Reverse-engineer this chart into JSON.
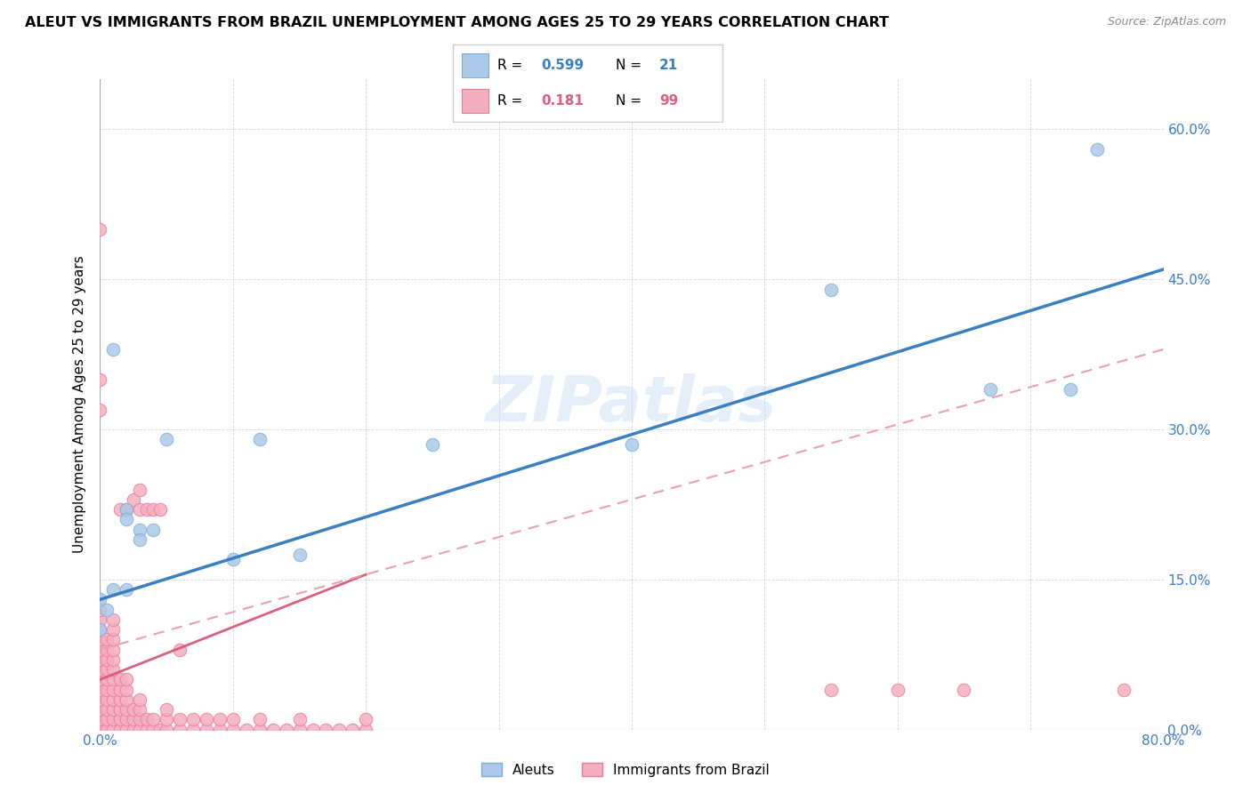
{
  "title": "ALEUT VS IMMIGRANTS FROM BRAZIL UNEMPLOYMENT AMONG AGES 25 TO 29 YEARS CORRELATION CHART",
  "source": "Source: ZipAtlas.com",
  "ylabel": "Unemployment Among Ages 25 to 29 years",
  "xmin": 0.0,
  "xmax": 0.8,
  "ymin": 0.0,
  "ymax": 0.65,
  "yticks": [
    0.0,
    0.15,
    0.3,
    0.45,
    0.6
  ],
  "legend_R_aleut": "0.599",
  "legend_N_aleut": "21",
  "legend_R_brazil": "0.181",
  "legend_N_brazil": "99",
  "aleut_color": "#adc8e8",
  "brazil_color": "#f5afc0",
  "aleut_edge": "#7aafd4",
  "brazil_edge": "#e8799a",
  "trend_aleut_color": "#3a7fc1",
  "trend_brazil_color": "#d9607a",
  "trend_brazil_dash_color": "#e8a0b0",
  "watermark": "ZIPatlas",
  "aleut_scatter": [
    [
      0.0,
      0.13
    ],
    [
      0.0,
      0.1
    ],
    [
      0.01,
      0.14
    ],
    [
      0.01,
      0.38
    ],
    [
      0.02,
      0.22
    ],
    [
      0.02,
      0.21
    ],
    [
      0.02,
      0.14
    ],
    [
      0.03,
      0.2
    ],
    [
      0.03,
      0.19
    ],
    [
      0.04,
      0.2
    ],
    [
      0.05,
      0.29
    ],
    [
      0.1,
      0.17
    ],
    [
      0.12,
      0.29
    ],
    [
      0.15,
      0.175
    ],
    [
      0.25,
      0.285
    ],
    [
      0.55,
      0.44
    ],
    [
      0.67,
      0.34
    ],
    [
      0.73,
      0.34
    ],
    [
      0.75,
      0.58
    ],
    [
      0.4,
      0.285
    ],
    [
      0.005,
      0.12
    ]
  ],
  "brazil_scatter": [
    [
      0.0,
      0.0
    ],
    [
      0.0,
      0.01
    ],
    [
      0.0,
      0.02
    ],
    [
      0.0,
      0.03
    ],
    [
      0.0,
      0.04
    ],
    [
      0.0,
      0.05
    ],
    [
      0.0,
      0.06
    ],
    [
      0.0,
      0.07
    ],
    [
      0.0,
      0.08
    ],
    [
      0.0,
      0.09
    ],
    [
      0.0,
      0.1
    ],
    [
      0.0,
      0.11
    ],
    [
      0.0,
      0.12
    ],
    [
      0.005,
      0.0
    ],
    [
      0.005,
      0.01
    ],
    [
      0.005,
      0.02
    ],
    [
      0.005,
      0.03
    ],
    [
      0.005,
      0.04
    ],
    [
      0.005,
      0.05
    ],
    [
      0.005,
      0.06
    ],
    [
      0.005,
      0.07
    ],
    [
      0.005,
      0.08
    ],
    [
      0.005,
      0.09
    ],
    [
      0.01,
      0.0
    ],
    [
      0.01,
      0.01
    ],
    [
      0.01,
      0.02
    ],
    [
      0.01,
      0.03
    ],
    [
      0.01,
      0.04
    ],
    [
      0.01,
      0.05
    ],
    [
      0.01,
      0.06
    ],
    [
      0.01,
      0.07
    ],
    [
      0.01,
      0.08
    ],
    [
      0.01,
      0.09
    ],
    [
      0.01,
      0.1
    ],
    [
      0.01,
      0.11
    ],
    [
      0.015,
      0.0
    ],
    [
      0.015,
      0.01
    ],
    [
      0.015,
      0.02
    ],
    [
      0.015,
      0.03
    ],
    [
      0.015,
      0.04
    ],
    [
      0.015,
      0.05
    ],
    [
      0.015,
      0.22
    ],
    [
      0.02,
      0.0
    ],
    [
      0.02,
      0.01
    ],
    [
      0.02,
      0.02
    ],
    [
      0.02,
      0.03
    ],
    [
      0.02,
      0.04
    ],
    [
      0.02,
      0.05
    ],
    [
      0.02,
      0.22
    ],
    [
      0.025,
      0.0
    ],
    [
      0.025,
      0.01
    ],
    [
      0.025,
      0.02
    ],
    [
      0.025,
      0.23
    ],
    [
      0.03,
      0.0
    ],
    [
      0.03,
      0.01
    ],
    [
      0.03,
      0.02
    ],
    [
      0.03,
      0.03
    ],
    [
      0.03,
      0.22
    ],
    [
      0.03,
      0.24
    ],
    [
      0.035,
      0.0
    ],
    [
      0.035,
      0.01
    ],
    [
      0.035,
      0.22
    ],
    [
      0.04,
      0.0
    ],
    [
      0.04,
      0.01
    ],
    [
      0.04,
      0.22
    ],
    [
      0.045,
      0.0
    ],
    [
      0.045,
      0.22
    ],
    [
      0.05,
      0.0
    ],
    [
      0.05,
      0.01
    ],
    [
      0.05,
      0.02
    ],
    [
      0.06,
      0.0
    ],
    [
      0.06,
      0.01
    ],
    [
      0.06,
      0.08
    ],
    [
      0.07,
      0.0
    ],
    [
      0.07,
      0.01
    ],
    [
      0.08,
      0.0
    ],
    [
      0.08,
      0.01
    ],
    [
      0.09,
      0.0
    ],
    [
      0.09,
      0.01
    ],
    [
      0.1,
      0.0
    ],
    [
      0.1,
      0.01
    ],
    [
      0.11,
      0.0
    ],
    [
      0.12,
      0.0
    ],
    [
      0.12,
      0.01
    ],
    [
      0.13,
      0.0
    ],
    [
      0.14,
      0.0
    ],
    [
      0.15,
      0.0
    ],
    [
      0.15,
      0.01
    ],
    [
      0.16,
      0.0
    ],
    [
      0.17,
      0.0
    ],
    [
      0.18,
      0.0
    ],
    [
      0.19,
      0.0
    ],
    [
      0.2,
      0.0
    ],
    [
      0.2,
      0.01
    ],
    [
      0.0,
      0.5
    ],
    [
      0.0,
      0.35
    ],
    [
      0.0,
      0.32
    ],
    [
      0.55,
      0.04
    ],
    [
      0.6,
      0.04
    ],
    [
      0.65,
      0.04
    ],
    [
      0.77,
      0.04
    ]
  ],
  "aleut_trend_x": [
    0.0,
    0.8
  ],
  "aleut_trend_y": [
    0.13,
    0.46
  ],
  "brazil_solid_trend_x": [
    0.0,
    0.2
  ],
  "brazil_solid_trend_y": [
    0.05,
    0.155
  ],
  "brazil_dash_trend_x": [
    0.0,
    0.8
  ],
  "brazil_dash_trend_y": [
    0.08,
    0.38
  ]
}
